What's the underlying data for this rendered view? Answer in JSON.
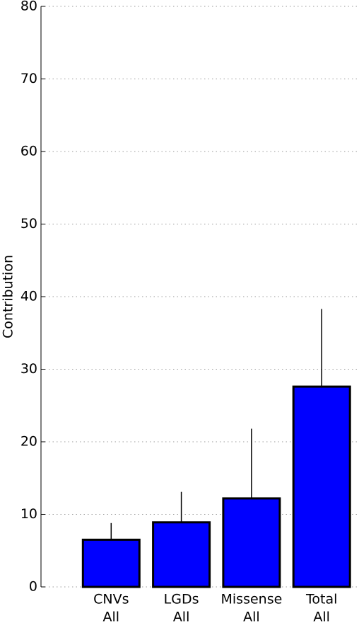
{
  "chart_data": {
    "type": "bar",
    "y_label": "Contribution",
    "categories": [
      [
        "CNVs",
        "All"
      ],
      [
        "LGDs",
        "All"
      ],
      [
        "Missense",
        "All"
      ],
      [
        "Total",
        "All"
      ]
    ],
    "values": [
      6.5,
      8.9,
      12.2,
      27.6
    ],
    "errors": [
      2.3,
      4.2,
      9.6,
      10.7
    ],
    "color": "#0000ff",
    "ylim": [
      0,
      80
    ],
    "yticks": [
      0,
      10,
      20,
      30,
      40,
      50,
      60,
      70,
      80
    ],
    "grid": true
  }
}
